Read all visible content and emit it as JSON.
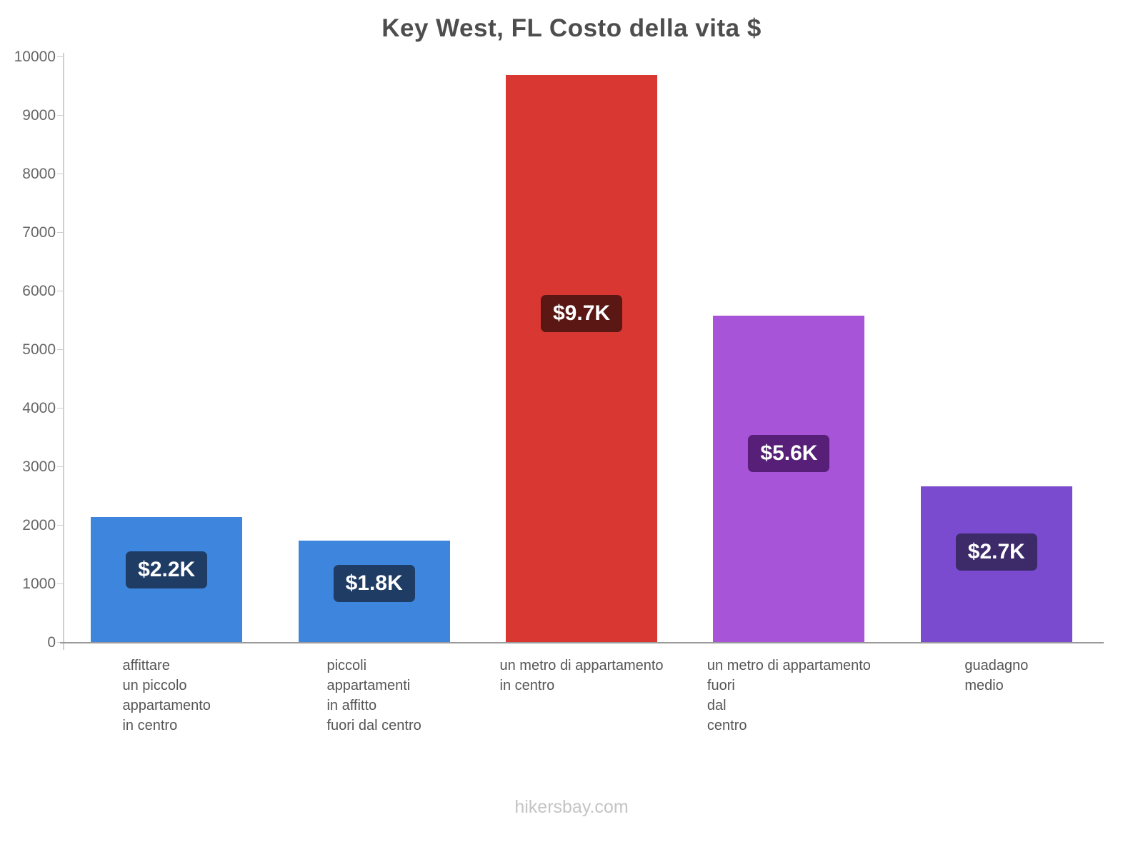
{
  "title": "Key West, FL Costo della vita $",
  "footer": "hikersbay.com",
  "chart_data": {
    "type": "bar",
    "title": "Key West, FL Costo della vita $",
    "xlabel": "",
    "ylabel": "",
    "ylim": [
      0,
      10000
    ],
    "ytick_step": 1000,
    "grid": false,
    "legend": false,
    "categories": [
      "affittare un piccolo appartamento in centro",
      "piccoli appartamenti in affitto fuori dal centro",
      "un metro di appartamento in centro",
      "un metro di appartamento fuori dal centro",
      "guadagno medio"
    ],
    "values": [
      2150,
      1750,
      9700,
      5580,
      2670
    ],
    "bars": [
      {
        "label_lines": [
          "affittare",
          "un piccolo",
          "appartamento",
          "in centro"
        ],
        "value": 2150,
        "value_label": "$2.2K",
        "color": "#3d85dd",
        "badge_color": "#1e3c64"
      },
      {
        "label_lines": [
          "piccoli",
          "appartamenti",
          "in affitto",
          "fuori dal centro"
        ],
        "value": 1750,
        "value_label": "$1.8K",
        "color": "#3d85dd",
        "badge_color": "#1e3c64"
      },
      {
        "label_lines": [
          "un metro di appartamento",
          "in centro"
        ],
        "value": 9700,
        "value_label": "$9.7K",
        "color": "#d93732",
        "badge_color": "#5a1714"
      },
      {
        "label_lines": [
          "un metro di appartamento",
          "fuori",
          "dal",
          "centro"
        ],
        "value": 5580,
        "value_label": "$5.6K",
        "color": "#a854d8",
        "badge_color": "#571f78"
      },
      {
        "label_lines": [
          "guadagno",
          "medio"
        ],
        "value": 2670,
        "value_label": "$2.7K",
        "color": "#7a4bce",
        "badge_color": "#3c2a69"
      }
    ]
  }
}
